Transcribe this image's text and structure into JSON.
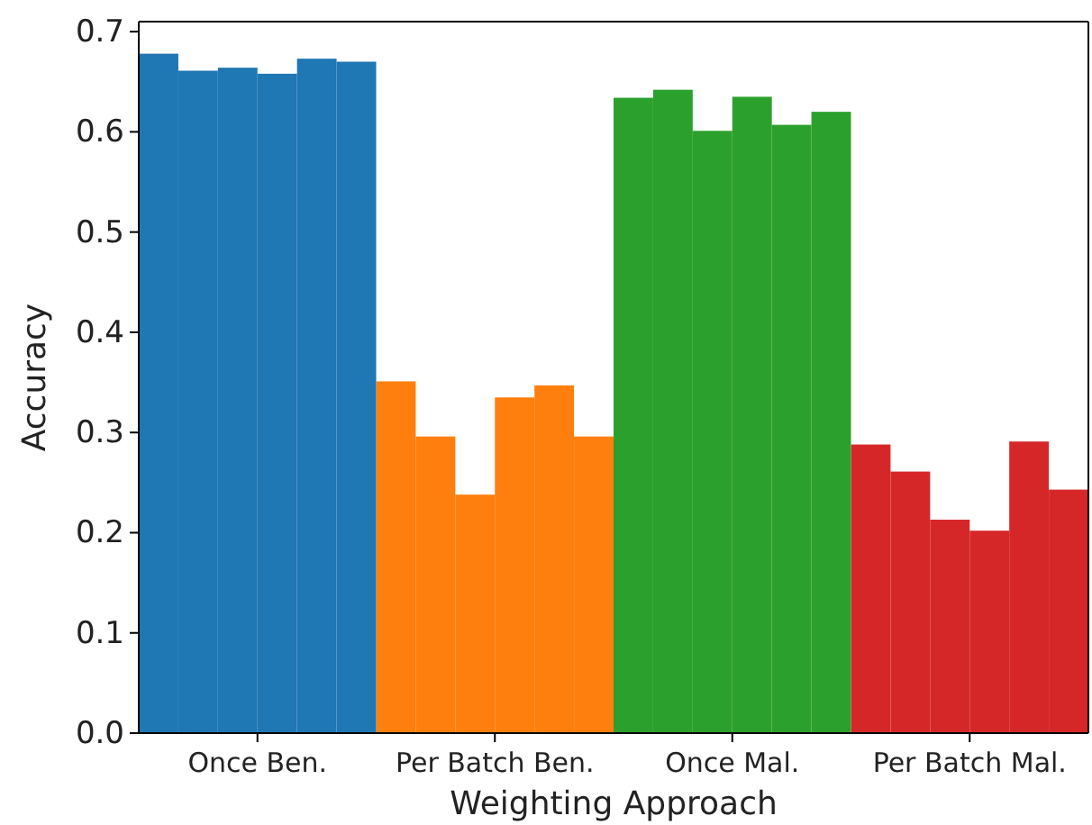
{
  "chart_data": {
    "type": "bar",
    "xlabel": "Weighting Approach",
    "ylabel": "Accuracy",
    "categories": [
      "Once Ben.",
      "Per Batch Ben.",
      "Once Mal.",
      "Per Batch Mal."
    ],
    "series": [
      {
        "colors": [
          "#1f77b4",
          "#ff7f0e",
          "#2ca02c",
          "#d62728"
        ],
        "values": [
          0.678,
          0.351,
          0.634,
          0.288
        ]
      },
      {
        "colors": [
          "#1f77b4",
          "#ff7f0e",
          "#2ca02c",
          "#d62728"
        ],
        "values": [
          0.661,
          0.296,
          0.642,
          0.261
        ]
      },
      {
        "colors": [
          "#1f77b4",
          "#ff7f0e",
          "#2ca02c",
          "#d62728"
        ],
        "values": [
          0.664,
          0.238,
          0.601,
          0.213
        ]
      },
      {
        "colors": [
          "#1f77b4",
          "#ff7f0e",
          "#2ca02c",
          "#d62728"
        ],
        "values": [
          0.658,
          0.335,
          0.635,
          0.202
        ]
      },
      {
        "colors": [
          "#1f77b4",
          "#ff7f0e",
          "#2ca02c",
          "#d62728"
        ],
        "values": [
          0.673,
          0.347,
          0.607,
          0.291
        ]
      },
      {
        "colors": [
          "#1f77b4",
          "#ff7f0e",
          "#2ca02c",
          "#d62728"
        ],
        "values": [
          0.67,
          0.296,
          0.62,
          0.243
        ]
      }
    ],
    "ylim": [
      0,
      0.71
    ],
    "yticks": [
      {
        "value": 0,
        "label": "0.0"
      },
      0.1,
      0.2,
      0.3,
      0.4,
      0.5,
      0.6,
      0.7
    ],
    "grid": false
  }
}
